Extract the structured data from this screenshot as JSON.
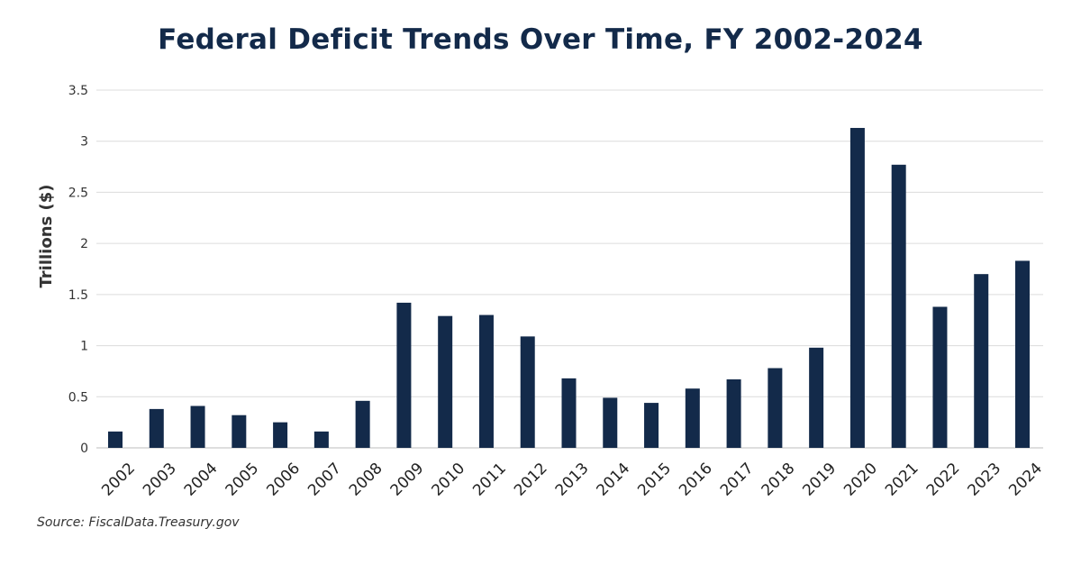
{
  "chart_data": {
    "type": "bar",
    "title": "Federal Deficit Trends Over Time, FY 2002-2024",
    "xlabel": "",
    "ylabel": "Trillions ($)",
    "ylim": [
      0,
      3.5
    ],
    "yticks": [
      "0",
      "0.5",
      "1",
      "1.5",
      "2",
      "2.5",
      "3",
      "3.5"
    ],
    "grid": true,
    "legend": "none",
    "bar_color": "#132a4a",
    "categories": [
      "2002",
      "2003",
      "2004",
      "2005",
      "2006",
      "2007",
      "2008",
      "2009",
      "2010",
      "2011",
      "2012",
      "2013",
      "2014",
      "2015",
      "2016",
      "2017",
      "2018",
      "2019",
      "2020",
      "2021",
      "2022",
      "2023",
      "2024"
    ],
    "values": [
      0.16,
      0.38,
      0.41,
      0.32,
      0.25,
      0.16,
      0.46,
      1.42,
      1.29,
      1.3,
      1.09,
      0.68,
      0.49,
      0.44,
      0.58,
      0.67,
      0.78,
      0.98,
      3.13,
      2.77,
      1.38,
      1.7,
      1.83
    ],
    "source": "Source: FiscalData.Treasury.gov"
  }
}
